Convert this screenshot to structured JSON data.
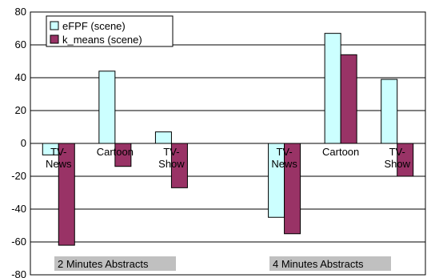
{
  "chart_data": {
    "type": "bar",
    "categories": [
      "TV-News",
      "Cartoon",
      "TV-Show",
      "TV-News",
      "Cartoon",
      "TV-Show"
    ],
    "category_label_lines": [
      [
        "TV-",
        "News"
      ],
      [
        "Cartoon"
      ],
      [
        "TV-",
        "Show"
      ],
      [
        "TV-",
        "News"
      ],
      [
        "Cartoon"
      ],
      [
        "TV-",
        "Show"
      ]
    ],
    "groups": [
      {
        "label": "2 Minutes Abstracts",
        "categories": [
          "TV-News",
          "Cartoon",
          "TV-Show"
        ]
      },
      {
        "label": "4 Minutes Abstracts",
        "categories": [
          "TV-News",
          "Cartoon",
          "TV-Show"
        ]
      }
    ],
    "series": [
      {
        "name": "eFPF (scene)",
        "color": "#ccffff",
        "values": [
          -7,
          44,
          7,
          -45,
          67,
          39
        ]
      },
      {
        "name": "k_means (scene)",
        "color": "#993366",
        "values": [
          -62,
          -14,
          -27,
          -55,
          54,
          -20
        ]
      }
    ],
    "ylim": [
      -80,
      80
    ],
    "yticks": [
      80,
      60,
      40,
      20,
      0,
      -20,
      -40,
      -60,
      -80
    ],
    "grid": true,
    "legend_position": "top-left",
    "title": "",
    "xlabel": "",
    "ylabel": ""
  }
}
